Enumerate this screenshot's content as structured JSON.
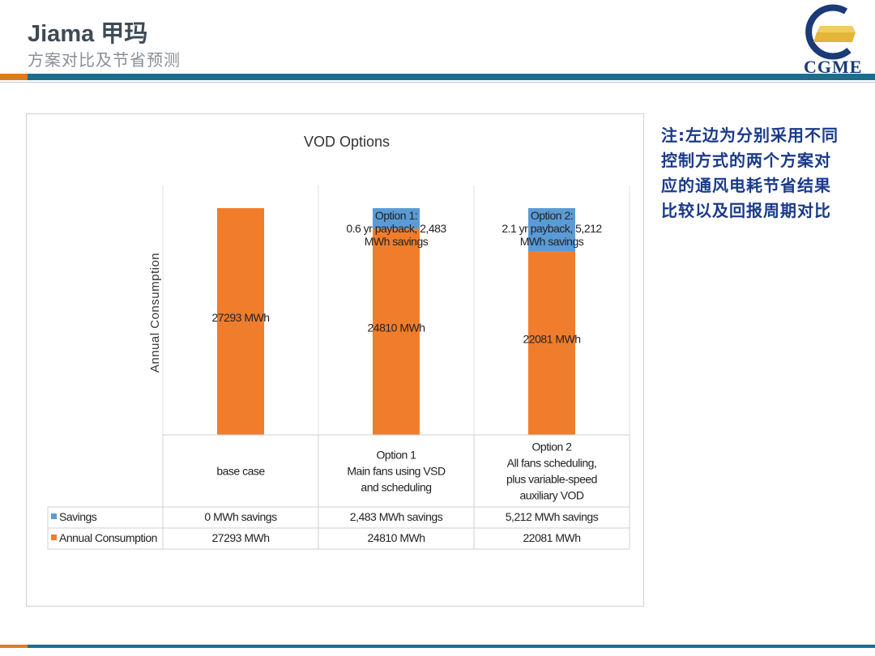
{
  "header": {
    "title": "Jiama 甲玛",
    "subtitle": "方案对比及节省预测"
  },
  "logo": {
    "text": "CGME"
  },
  "note": {
    "text": "注:左边为分别采用不同控制方式的两个方案对应的通风电耗节省结果比较以及回报周期对比"
  },
  "colors": {
    "consumption": "#ef7d2c",
    "savings": "#5b9bd5",
    "header_bar": "#1a6f8e",
    "accent": "#e07a1f",
    "note_text": "#1a3a8a"
  },
  "chart_data": {
    "type": "bar",
    "stacked": true,
    "title": "VOD Options",
    "xlabel": "",
    "ylabel": "Annual Consumption",
    "grid": false,
    "ylim": [
      0,
      27293
    ],
    "categories": [
      [
        "base case"
      ],
      [
        "Option 1",
        "Main fans using VSD",
        "and scheduling"
      ],
      [
        "Option 2",
        "All fans scheduling,",
        "plus variable-speed",
        "auxiliary VOD"
      ]
    ],
    "series": [
      {
        "name": "Annual Consumption",
        "color": "#ef7d2c",
        "values": [
          27293,
          24810,
          22081
        ],
        "data_labels": [
          "27293 MWh",
          "24810 MWh",
          "22081 MWh"
        ],
        "table_values": [
          "27293 MWh",
          "24810 MWh",
          "22081 MWh"
        ]
      },
      {
        "name": "Savings",
        "color": "#5b9bd5",
        "values": [
          0,
          2483,
          5212
        ],
        "data_labels": [
          [],
          [
            "Option 1:",
            "0.6 yr payback, 2,483",
            "MWh savings"
          ],
          [
            "Option 2:",
            "2.1 yr payback, 5,212",
            "MWh savings"
          ]
        ],
        "table_values": [
          "0 MWh savings",
          "2,483 MWh savings",
          "5,212 MWh savings"
        ]
      }
    ]
  }
}
